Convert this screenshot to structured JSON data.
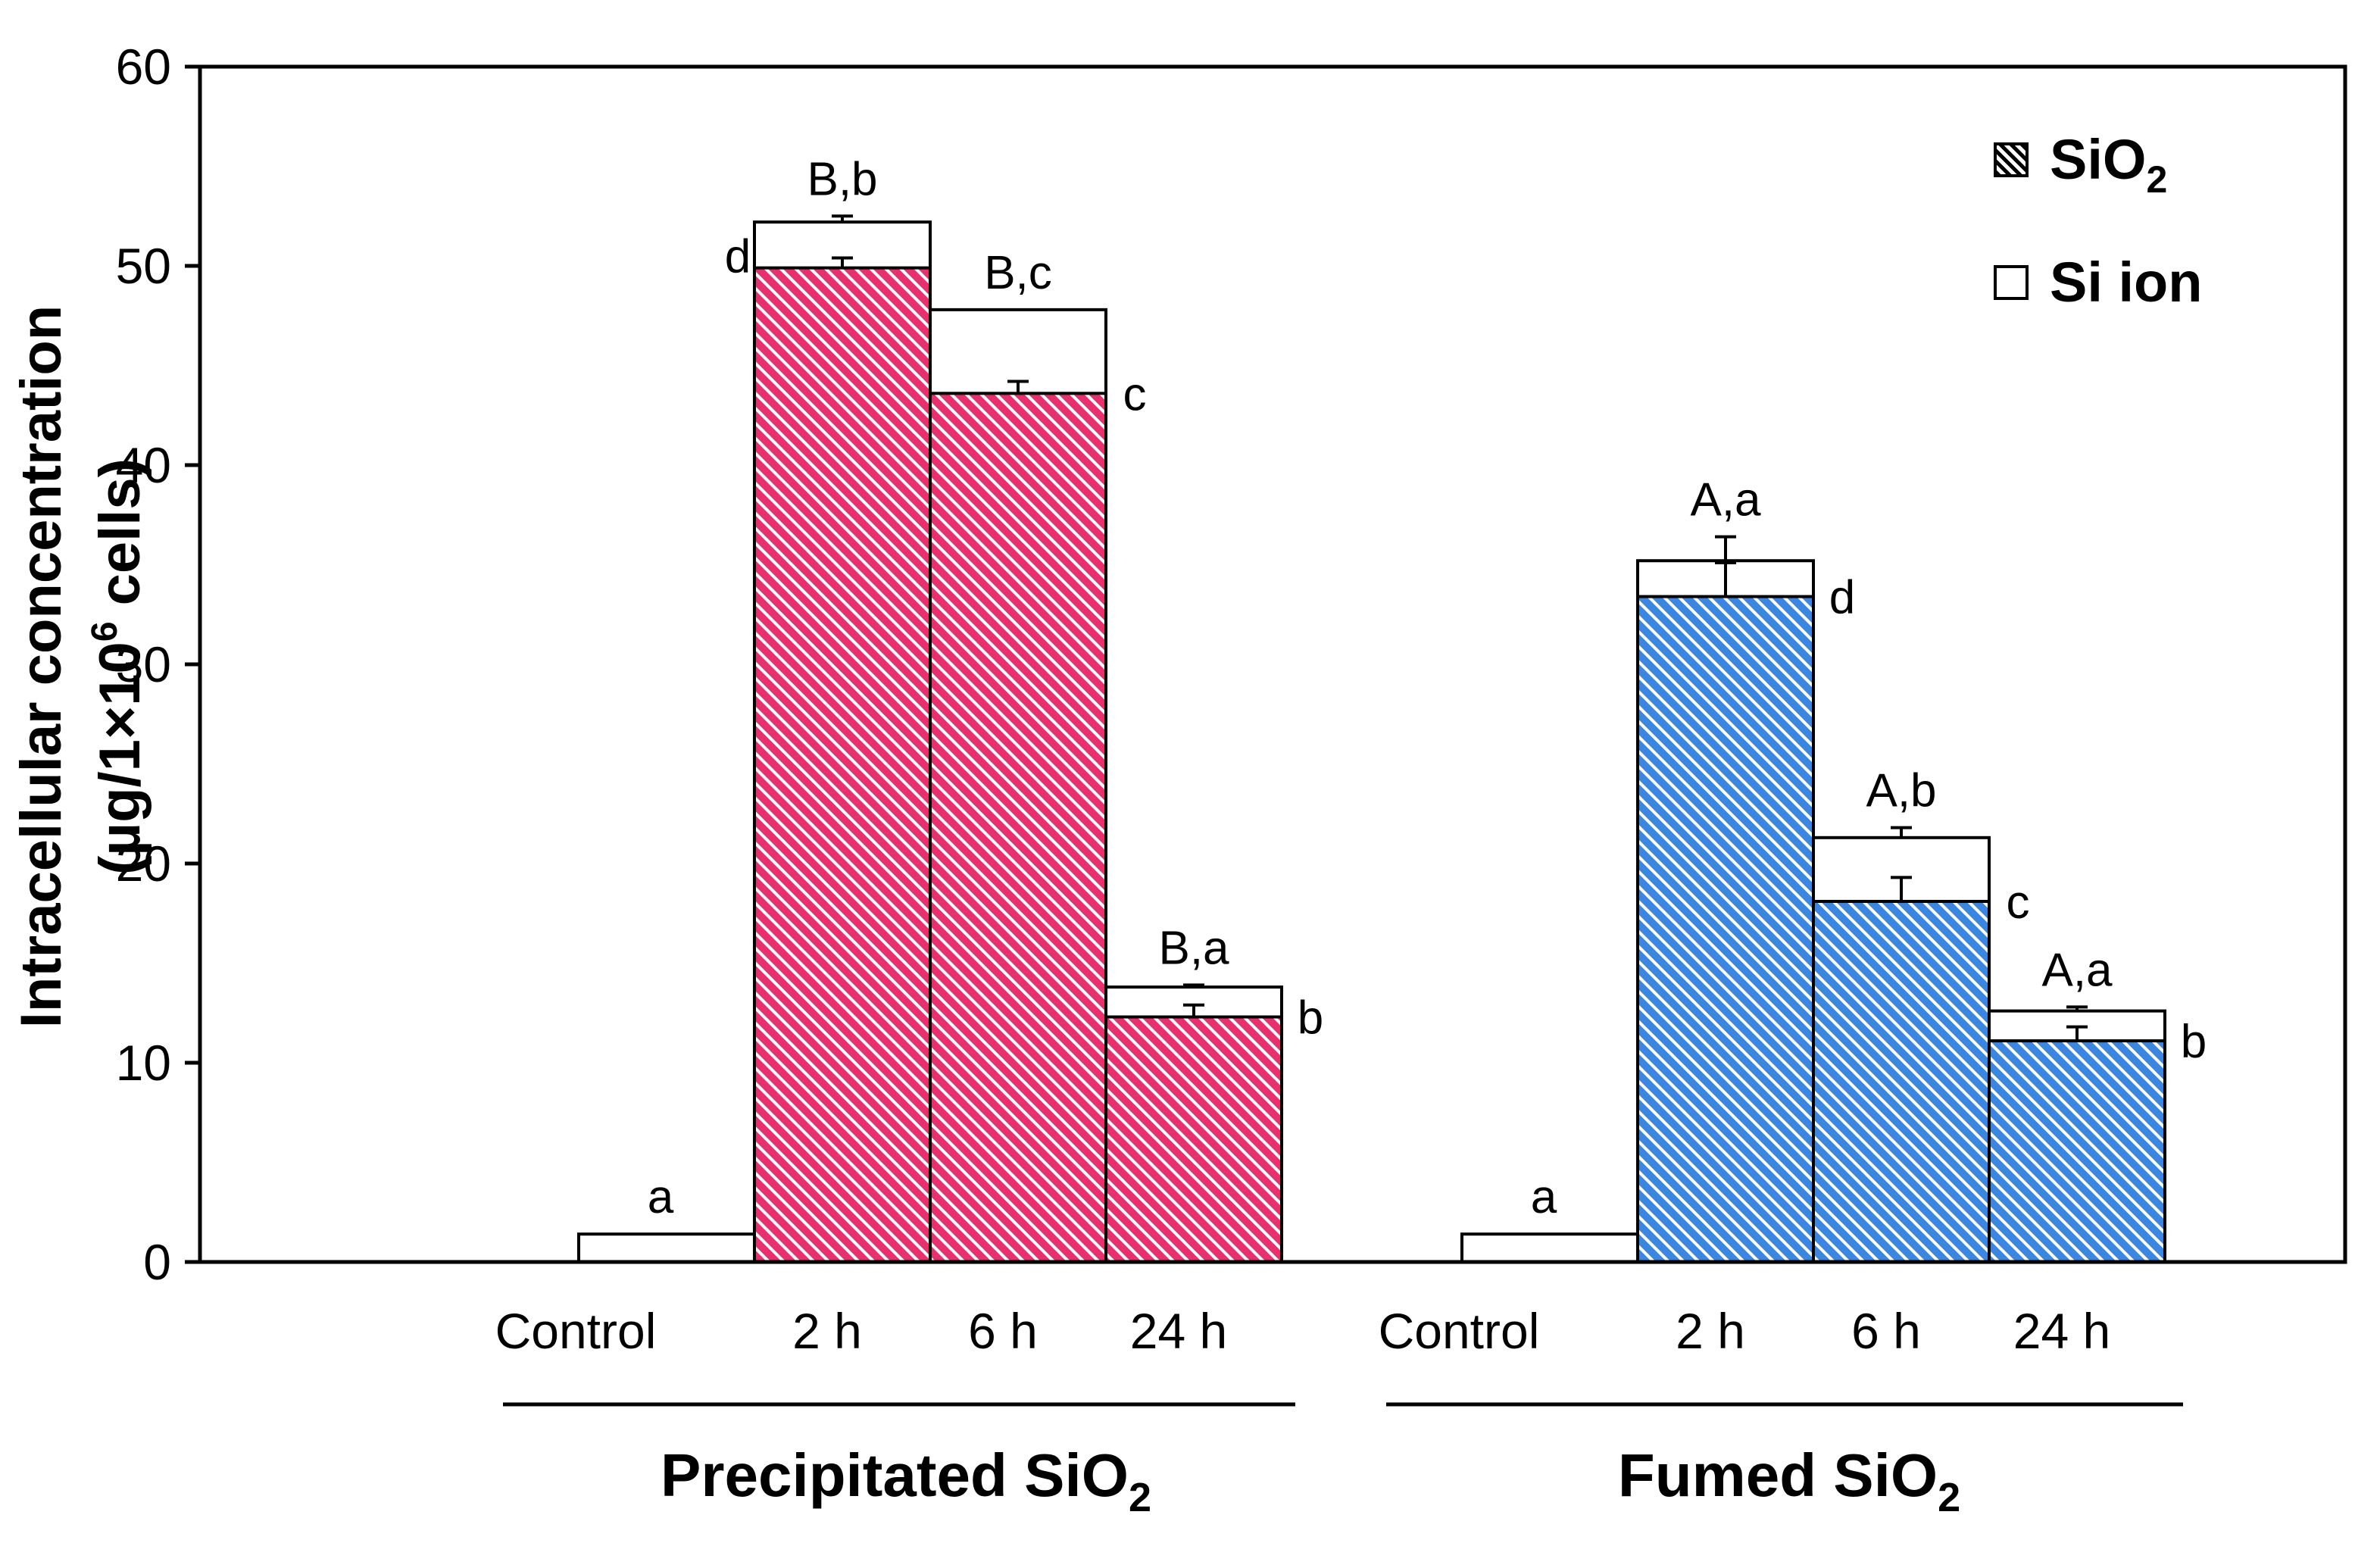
{
  "chart_data": {
    "type": "bar",
    "stacked": true,
    "ylabel_line1": "Intracellular concentration",
    "ylabel_line2_prefix": "(µg/1×10",
    "ylabel_line2_sup": "6",
    "ylabel_line2_suffix": " cells)",
    "ylim": [
      0,
      60
    ],
    "yticks": [
      "0",
      "10",
      "20",
      "30",
      "40",
      "50",
      "60"
    ],
    "grid": false,
    "legend_position": "top-right",
    "legend": [
      {
        "name_base": "SiO",
        "name_sub": "2",
        "pattern": "hatched"
      },
      {
        "name_base": "Si ion",
        "name_sub": "",
        "pattern": "open"
      }
    ],
    "groups": [
      {
        "name_base": "Precipitated SiO",
        "name_sub": "2",
        "color": "#e8306f",
        "categories": [
          "Control",
          "2 h",
          "6 h",
          "24 h"
        ],
        "sio2": [
          0,
          49.9,
          43.6,
          12.3
        ],
        "sio2_err": [
          0,
          0.5,
          0.6,
          0.6
        ],
        "total": [
          1.4,
          52.2,
          47.8,
          13.8
        ],
        "total_err": [
          0,
          0.3,
          0,
          0.1
        ],
        "total_labels": [
          "a",
          "B,b",
          "B,c",
          "B,a"
        ],
        "sio2_labels": [
          "",
          "d",
          "c",
          "b"
        ]
      },
      {
        "name_base": "Fumed SiO",
        "name_sub": "2",
        "color": "#3a86e0",
        "categories": [
          "Control",
          "2 h",
          "6 h",
          "24 h"
        ],
        "sio2": [
          0,
          33.4,
          18.1,
          11.1
        ],
        "sio2_err": [
          0,
          1.7,
          1.2,
          0.7
        ],
        "total": [
          1.4,
          35.2,
          21.3,
          12.6
        ],
        "total_err": [
          0,
          1.2,
          0.5,
          0.2
        ],
        "total_labels": [
          "a",
          "A,a",
          "A,b",
          "A,a"
        ],
        "sio2_labels": [
          "",
          "d",
          "c",
          "b"
        ]
      }
    ]
  }
}
